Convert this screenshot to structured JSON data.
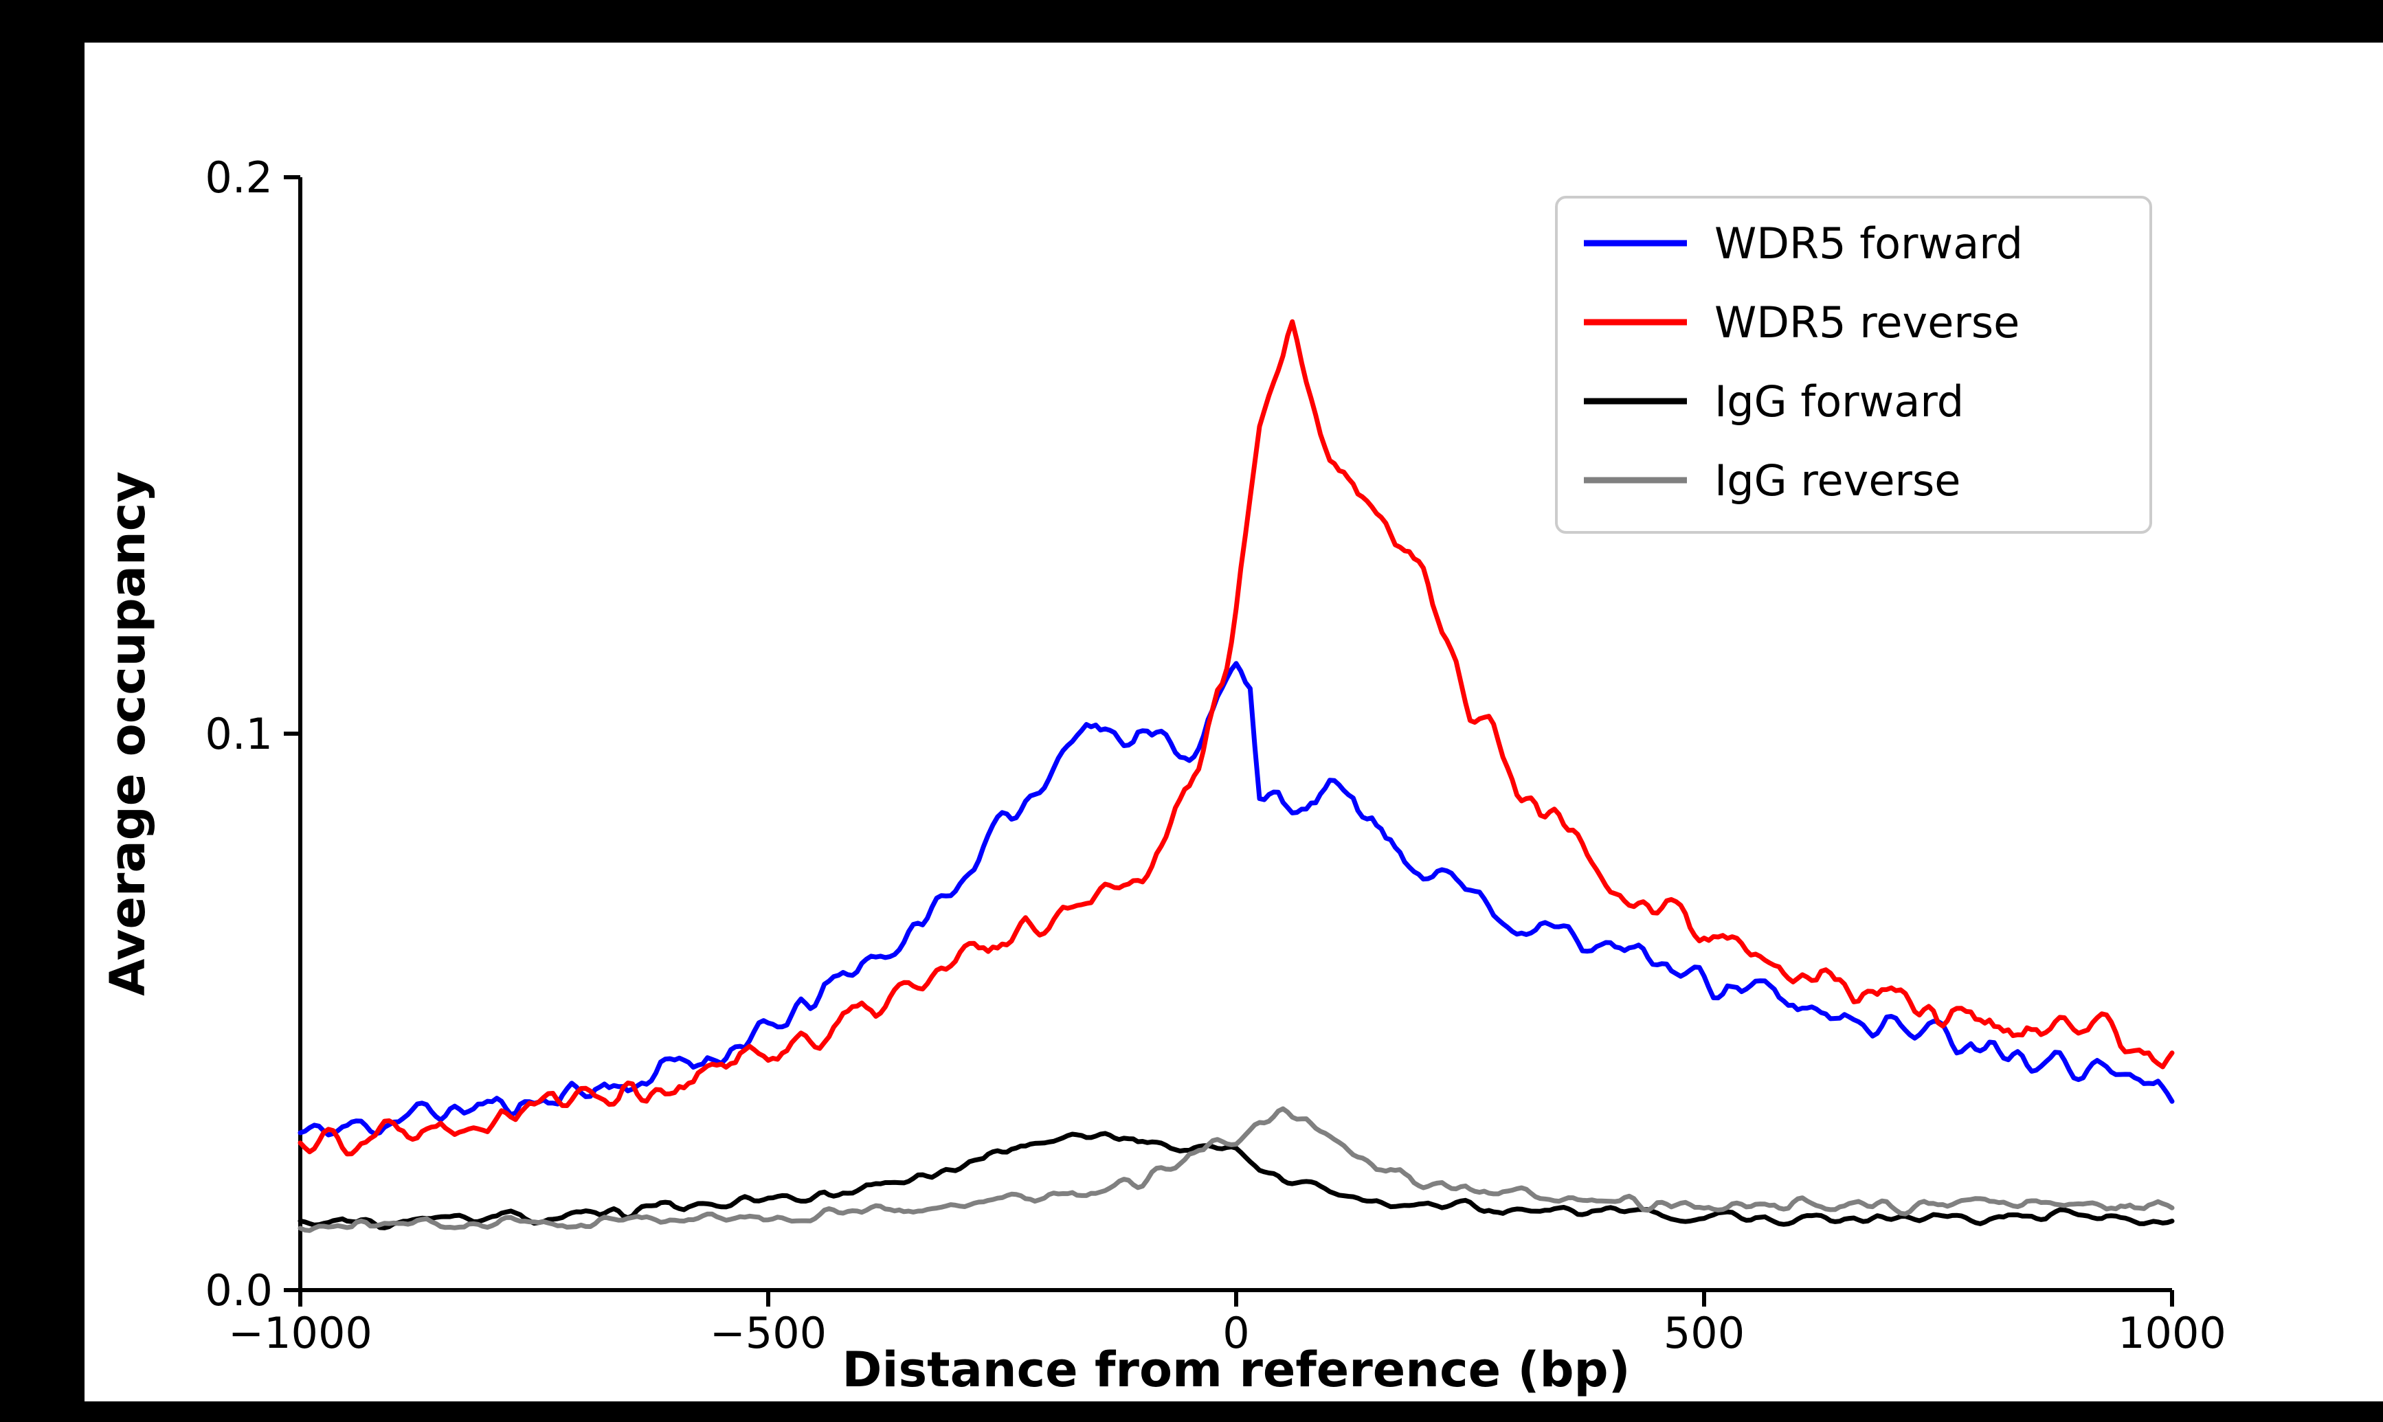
{
  "figure": {
    "background_color": "#000000",
    "plot_background_color": "#ffffff"
  },
  "chart_data": {
    "type": "line",
    "title": "",
    "xlabel": "Distance from reference (bp)",
    "ylabel": "Average occupancy",
    "xlim": [
      -1000,
      1000
    ],
    "ylim": [
      0,
      0.2
    ],
    "xticks": [
      -1000,
      -500,
      0,
      500,
      1000
    ],
    "xtick_labels": [
      "−1000",
      "−500",
      "0",
      "500",
      "1000"
    ],
    "yticks": [
      0,
      0.1,
      0.2
    ],
    "ytick_labels": [
      "0.0",
      "0.1",
      "0.2"
    ],
    "grid": false,
    "legend_position": "upper right",
    "series": [
      {
        "name": "WDR5 forward",
        "color": "#0000ff",
        "jitter": 0.0016,
        "seed": 11,
        "points": [
          [
            -1000,
            0.028
          ],
          [
            -950,
            0.029
          ],
          [
            -900,
            0.031
          ],
          [
            -850,
            0.032
          ],
          [
            -800,
            0.033
          ],
          [
            -750,
            0.034
          ],
          [
            -700,
            0.036
          ],
          [
            -650,
            0.037
          ],
          [
            -600,
            0.04
          ],
          [
            -550,
            0.043
          ],
          [
            -500,
            0.046
          ],
          [
            -450,
            0.052
          ],
          [
            -400,
            0.059
          ],
          [
            -350,
            0.063
          ],
          [
            -300,
            0.073
          ],
          [
            -250,
            0.083
          ],
          [
            -200,
            0.094
          ],
          [
            -175,
            0.099
          ],
          [
            -150,
            0.102
          ],
          [
            -125,
            0.1
          ],
          [
            -100,
            0.101
          ],
          [
            -75,
            0.098
          ],
          [
            -50,
            0.097
          ],
          [
            -25,
            0.103
          ],
          [
            0,
            0.112
          ],
          [
            15,
            0.11
          ],
          [
            25,
            0.09
          ],
          [
            50,
            0.086
          ],
          [
            75,
            0.086
          ],
          [
            100,
            0.089
          ],
          [
            125,
            0.091
          ],
          [
            150,
            0.083
          ],
          [
            175,
            0.079
          ],
          [
            200,
            0.076
          ],
          [
            250,
            0.072
          ],
          [
            300,
            0.066
          ],
          [
            350,
            0.064
          ],
          [
            400,
            0.061
          ],
          [
            450,
            0.059
          ],
          [
            500,
            0.056
          ],
          [
            550,
            0.054
          ],
          [
            600,
            0.051
          ],
          [
            650,
            0.05
          ],
          [
            700,
            0.048
          ],
          [
            750,
            0.046
          ],
          [
            800,
            0.045
          ],
          [
            850,
            0.043
          ],
          [
            900,
            0.041
          ],
          [
            950,
            0.038
          ],
          [
            1000,
            0.036
          ]
        ]
      },
      {
        "name": "WDR5 reverse",
        "color": "#ff0000",
        "jitter": 0.0018,
        "seed": 22,
        "points": [
          [
            -1000,
            0.027
          ],
          [
            -950,
            0.028
          ],
          [
            -900,
            0.029
          ],
          [
            -850,
            0.031
          ],
          [
            -800,
            0.032
          ],
          [
            -750,
            0.034
          ],
          [
            -700,
            0.035
          ],
          [
            -650,
            0.036
          ],
          [
            -600,
            0.037
          ],
          [
            -550,
            0.04
          ],
          [
            -500,
            0.043
          ],
          [
            -450,
            0.046
          ],
          [
            -400,
            0.049
          ],
          [
            -350,
            0.054
          ],
          [
            -300,
            0.058
          ],
          [
            -250,
            0.063
          ],
          [
            -200,
            0.068
          ],
          [
            -150,
            0.072
          ],
          [
            -100,
            0.076
          ],
          [
            -75,
            0.082
          ],
          [
            -50,
            0.091
          ],
          [
            -25,
            0.102
          ],
          [
            0,
            0.123
          ],
          [
            25,
            0.152
          ],
          [
            40,
            0.163
          ],
          [
            60,
            0.171
          ],
          [
            75,
            0.161
          ],
          [
            100,
            0.149
          ],
          [
            125,
            0.144
          ],
          [
            150,
            0.139
          ],
          [
            175,
            0.136
          ],
          [
            200,
            0.131
          ],
          [
            225,
            0.116
          ],
          [
            250,
            0.104
          ],
          [
            275,
            0.101
          ],
          [
            300,
            0.091
          ],
          [
            325,
            0.086
          ],
          [
            350,
            0.083
          ],
          [
            375,
            0.079
          ],
          [
            400,
            0.073
          ],
          [
            425,
            0.071
          ],
          [
            450,
            0.069
          ],
          [
            475,
            0.067
          ],
          [
            500,
            0.064
          ],
          [
            550,
            0.059
          ],
          [
            600,
            0.057
          ],
          [
            650,
            0.054
          ],
          [
            700,
            0.052
          ],
          [
            750,
            0.05
          ],
          [
            800,
            0.049
          ],
          [
            850,
            0.047
          ],
          [
            900,
            0.046
          ],
          [
            950,
            0.044
          ],
          [
            1000,
            0.042
          ]
        ]
      },
      {
        "name": "IgG forward",
        "color": "#000000",
        "jitter": 0.0006,
        "seed": 33,
        "points": [
          [
            -1000,
            0.012
          ],
          [
            -900,
            0.012
          ],
          [
            -800,
            0.013
          ],
          [
            -700,
            0.013
          ],
          [
            -600,
            0.015
          ],
          [
            -500,
            0.016
          ],
          [
            -400,
            0.018
          ],
          [
            -350,
            0.02
          ],
          [
            -300,
            0.022
          ],
          [
            -250,
            0.025
          ],
          [
            -200,
            0.027
          ],
          [
            -150,
            0.028
          ],
          [
            -100,
            0.027
          ],
          [
            -50,
            0.025
          ],
          [
            -25,
            0.026
          ],
          [
            0,
            0.025
          ],
          [
            25,
            0.022
          ],
          [
            50,
            0.02
          ],
          [
            100,
            0.018
          ],
          [
            150,
            0.016
          ],
          [
            200,
            0.015
          ],
          [
            250,
            0.015
          ],
          [
            300,
            0.014
          ],
          [
            400,
            0.014
          ],
          [
            500,
            0.013
          ],
          [
            600,
            0.013
          ],
          [
            700,
            0.013
          ],
          [
            800,
            0.013
          ],
          [
            900,
            0.013
          ],
          [
            1000,
            0.012
          ]
        ]
      },
      {
        "name": "IgG reverse",
        "color": "#808080",
        "jitter": 0.0007,
        "seed": 44,
        "points": [
          [
            -1000,
            0.011
          ],
          [
            -900,
            0.012
          ],
          [
            -800,
            0.012
          ],
          [
            -700,
            0.012
          ],
          [
            -600,
            0.013
          ],
          [
            -500,
            0.013
          ],
          [
            -400,
            0.014
          ],
          [
            -300,
            0.015
          ],
          [
            -250,
            0.016
          ],
          [
            -200,
            0.017
          ],
          [
            -150,
            0.018
          ],
          [
            -100,
            0.02
          ],
          [
            -50,
            0.024
          ],
          [
            -25,
            0.026
          ],
          [
            0,
            0.026
          ],
          [
            25,
            0.03
          ],
          [
            50,
            0.032
          ],
          [
            75,
            0.031
          ],
          [
            100,
            0.028
          ],
          [
            125,
            0.025
          ],
          [
            150,
            0.022
          ],
          [
            200,
            0.019
          ],
          [
            250,
            0.018
          ],
          [
            300,
            0.017
          ],
          [
            350,
            0.016
          ],
          [
            400,
            0.016
          ],
          [
            500,
            0.015
          ],
          [
            600,
            0.015
          ],
          [
            700,
            0.015
          ],
          [
            800,
            0.016
          ],
          [
            900,
            0.015
          ],
          [
            1000,
            0.015
          ]
        ]
      }
    ]
  }
}
